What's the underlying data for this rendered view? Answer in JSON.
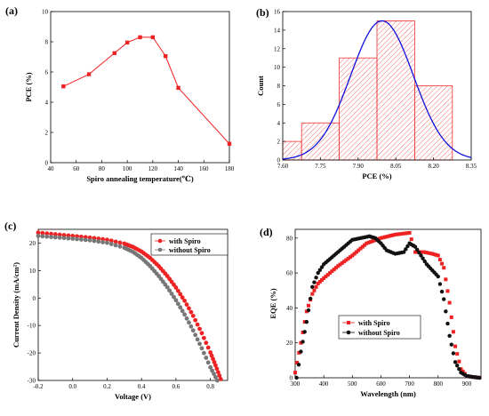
{
  "figure": {
    "panels": [
      {
        "label": "(a)"
      },
      {
        "label": "(b)"
      },
      {
        "label": "(c)"
      },
      {
        "label": "(d)"
      }
    ]
  },
  "colors": {
    "red": "#ee2222",
    "black": "#111111",
    "gray": "#777777",
    "blue": "#1111dd",
    "bin_red": "#ee3333"
  },
  "chart_data": [
    {
      "id": "a",
      "type": "line",
      "panel_label": "(a)",
      "xlabel": "Spiro annealing temperature(℃)",
      "ylabel": "PCE (%)",
      "xlim": [
        40,
        180
      ],
      "ylim": [
        0,
        10
      ],
      "xticks": [
        "40",
        "60",
        "80",
        "100",
        "120",
        "140",
        "160",
        "180"
      ],
      "yticks": [
        "0",
        "2",
        "4",
        "6",
        "8",
        "10"
      ],
      "series": [
        {
          "x": [
            50,
            70,
            90,
            100,
            110,
            120,
            130,
            140,
            180
          ],
          "y": [
            5.05,
            5.85,
            7.25,
            7.95,
            8.3,
            8.3,
            7.05,
            4.95,
            1.25
          ],
          "color": "#ee2222",
          "marker": "square"
        }
      ]
    },
    {
      "id": "b",
      "type": "bar",
      "panel_label": "(b)",
      "subtype": "histogram",
      "xlabel": "PCE (%)",
      "ylabel": "Count",
      "xlim": [
        7.6,
        8.35
      ],
      "ylim": [
        0,
        16
      ],
      "xticks": [
        "7.60",
        "7.75",
        "7.90",
        "8.05",
        "8.20",
        "8.35"
      ],
      "yticks": [
        "0",
        "2",
        "4",
        "6",
        "8",
        "10",
        "12",
        "14",
        "16"
      ],
      "bins": [
        {
          "from": 7.6,
          "to": 7.675,
          "count": 2
        },
        {
          "from": 7.675,
          "to": 7.825,
          "count": 4
        },
        {
          "from": 7.825,
          "to": 7.975,
          "count": 11
        },
        {
          "from": 7.975,
          "to": 8.125,
          "count": 15
        },
        {
          "from": 8.125,
          "to": 8.275,
          "count": 8
        }
      ],
      "normal_fit": {
        "mean": 7.995,
        "sd": 0.125,
        "peak": 15,
        "color": "#1111dd"
      }
    },
    {
      "id": "c",
      "type": "scatter",
      "panel_label": "(c)",
      "xlabel": "Voltage (V)",
      "ylabel": "Current Density (mA/cm²)",
      "xlim": [
        -0.2,
        0.9
      ],
      "ylim": [
        -30,
        25
      ],
      "xticks": [
        "-0.2",
        "0.0",
        "0.2",
        "0.4",
        "0.6",
        "0.8"
      ],
      "yticks": [
        "-30",
        "-20",
        "-10",
        "0",
        "10",
        "20"
      ],
      "legend": "top-right",
      "series": [
        {
          "name": "with Spiro",
          "color": "#ee2222",
          "x": [
            -0.2,
            -0.1,
            0.0,
            0.1,
            0.2,
            0.3,
            0.35,
            0.4,
            0.45,
            0.5,
            0.55,
            0.6,
            0.65,
            0.7,
            0.75,
            0.8,
            0.83,
            0.86
          ],
          "y": [
            23.8,
            23.2,
            22.6,
            22.0,
            21.2,
            19.8,
            18.6,
            16.9,
            14.6,
            11.6,
            8.0,
            3.8,
            -1.0,
            -6.5,
            -12.8,
            -19.8,
            -24.5,
            -29.5
          ]
        },
        {
          "name": "without Spiro",
          "color": "#777777",
          "x": [
            -0.2,
            -0.1,
            0.0,
            0.1,
            0.2,
            0.3,
            0.35,
            0.4,
            0.45,
            0.5,
            0.55,
            0.6,
            0.65,
            0.7,
            0.75,
            0.8,
            0.84
          ],
          "y": [
            22.6,
            22.1,
            21.6,
            21.0,
            20.1,
            18.3,
            16.8,
            14.6,
            11.6,
            8.0,
            3.9,
            -0.8,
            -6.0,
            -11.8,
            -18.3,
            -25.2,
            -30.0
          ]
        }
      ]
    },
    {
      "id": "d",
      "type": "scatter",
      "panel_label": "(d)",
      "xlabel": "Wavelength (nm)",
      "ylabel": "EQE (%)",
      "xlim": [
        300,
        950
      ],
      "ylim": [
        0,
        85
      ],
      "xticks": [
        "300",
        "400",
        "500",
        "600",
        "700",
        "800",
        "900"
      ],
      "yticks": [
        "0",
        "20",
        "40",
        "60",
        "80"
      ],
      "legend": "lower-center",
      "series": [
        {
          "name": "with Spiro",
          "color": "#ee2222",
          "marker": "square",
          "x": [
            300,
            320,
            340,
            360,
            380,
            400,
            450,
            500,
            550,
            600,
            650,
            700,
            720,
            750,
            780,
            800,
            820,
            840,
            860,
            880,
            900,
            920,
            945
          ],
          "y": [
            3,
            20,
            38,
            48,
            54,
            57,
            64,
            70,
            77,
            80,
            82,
            83,
            72,
            72,
            71,
            70,
            63,
            43,
            18,
            5,
            1,
            0.5,
            0
          ]
        },
        {
          "name": "without Spiro",
          "color": "#111111",
          "marker": "circle",
          "x": [
            305,
            320,
            340,
            360,
            380,
            400,
            450,
            500,
            530,
            560,
            580,
            600,
            620,
            650,
            680,
            700,
            720,
            760,
            800,
            820,
            840,
            860,
            880,
            900,
            920,
            945
          ],
          "y": [
            0,
            15,
            32,
            52,
            60,
            65,
            72,
            79,
            80,
            81,
            80,
            77,
            73,
            71,
            72,
            77,
            75,
            65,
            58,
            45,
            24,
            9,
            3,
            1,
            0.5,
            0
          ]
        }
      ]
    }
  ]
}
